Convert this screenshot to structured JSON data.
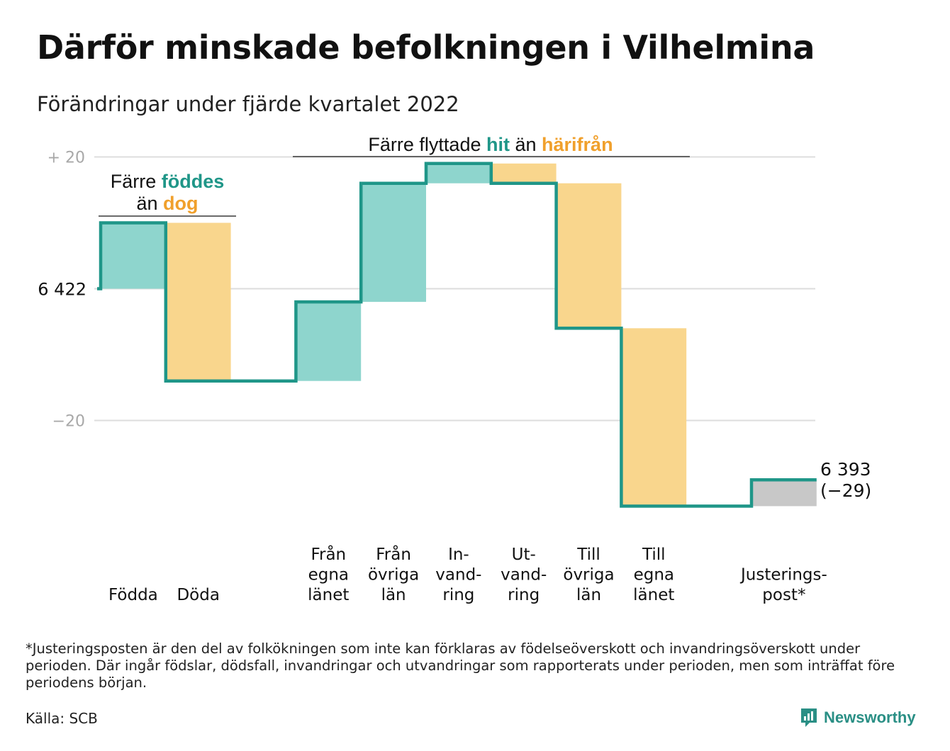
{
  "title": "Därför minskade befolkningen i Vilhelmina",
  "subtitle": "Förändringar under fjärde kvartalet 2022",
  "colors": {
    "teal_line": "#1f9688",
    "teal_fill": "#8ed5cd",
    "orange_fill": "#f9d68d",
    "orange_text": "#f0a02c",
    "grey_fill": "#c8c8c8",
    "grid": "#dddddd"
  },
  "annotations": {
    "births": {
      "line1_pre": "Färre ",
      "line1_hi": "föddes",
      "line2_pre": "än ",
      "line2_hi": "dog"
    },
    "moves": {
      "pre": "Färre flyttade ",
      "hi1": "hit",
      "mid": " än ",
      "hi2": "härifrån"
    }
  },
  "chart_data": {
    "type": "waterfall",
    "start_label": "6 422",
    "start_value": 6422,
    "end_label_line1": "6 393",
    "end_label_line2": "(−29)",
    "end_value": 6393,
    "y_ticks": [
      {
        "value": 20,
        "label": "+ 20"
      },
      {
        "value": 0,
        "label": ""
      },
      {
        "value": -20,
        "label": "−20"
      }
    ],
    "y_note": "values are change relative to 6 422",
    "grid": true,
    "ylim": [
      -38,
      22
    ],
    "steps": [
      {
        "label": [
          "Födda"
        ],
        "change": 10,
        "kind": "in"
      },
      {
        "label": [
          "Döda"
        ],
        "change": -24,
        "kind": "out"
      },
      {
        "label": [
          ""
        ],
        "change": 0,
        "kind": "gap"
      },
      {
        "label": [
          "Från",
          "egna",
          "länet"
        ],
        "change": 12,
        "kind": "in"
      },
      {
        "label": [
          "Från",
          "övriga",
          "län"
        ],
        "change": 18,
        "kind": "in"
      },
      {
        "label": [
          "In-",
          "vand-",
          "ring"
        ],
        "change": 3,
        "kind": "in"
      },
      {
        "label": [
          "Ut-",
          "vand-",
          "ring"
        ],
        "change": -3,
        "kind": "out"
      },
      {
        "label": [
          "Till",
          "övriga",
          "län"
        ],
        "change": -22,
        "kind": "out"
      },
      {
        "label": [
          "Till",
          "egna",
          "länet"
        ],
        "change": -27,
        "kind": "out"
      },
      {
        "label": [
          ""
        ],
        "change": 0,
        "kind": "gap"
      },
      {
        "label": [
          "Justerings-",
          "post*"
        ],
        "change": 4,
        "kind": "adjust"
      }
    ]
  },
  "footnote": "*Justeringsposten är den del av folkökningen som inte kan förklaras av födelseöverskott och invandringsöverskott under perioden. Där ingår födslar, dödsfall, invandringar och utvandringar som rapporterats under perioden, men som inträffat före periodens början.",
  "source": "Källa: SCB",
  "brand": "Newsworthy"
}
